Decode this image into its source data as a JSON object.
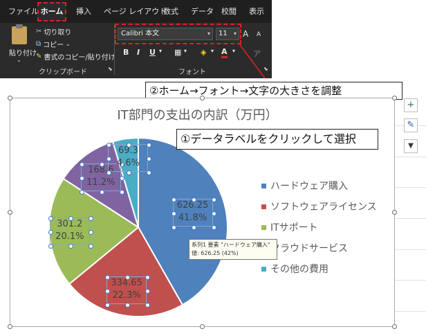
{
  "ribbon": {
    "tabs": [
      "ファイル",
      "ホーム",
      "挿入",
      "ページ レイアウト",
      "数式",
      "データ",
      "校閲",
      "表示"
    ],
    "clipboard": {
      "paste_label": "貼り付け",
      "cut_label": "切り取り",
      "copy_label": "コピー",
      "format_painter_label": "書式のコピー/貼り付け",
      "group_label": "クリップボード"
    },
    "font": {
      "font_name": "Calibri 本文",
      "font_size": "11",
      "grow_label": "A",
      "shrink_label": "A",
      "bold": "B",
      "italic": "I",
      "underline": "U",
      "font_color_letter": "A",
      "group_label": "フォント"
    }
  },
  "callouts": {
    "step2": "②ホーム→フォント→文字の大きさを調整",
    "step1": "①データラベルをクリックして選択"
  },
  "chart": {
    "title": "IT部門の支出の内訳（万円）",
    "side_buttons": [
      "+",
      "✎",
      "▼"
    ],
    "tooltip_line1": "系列1 要素 \"ハードウェア購入\"",
    "tooltip_line2": "値: 626.25 (42%)",
    "colors": {
      "hardware": "#4f81bd",
      "software": "#c0504d",
      "support": "#9bbb59",
      "cloud": "#8064a2",
      "other": "#4bacc6"
    }
  },
  "chart_data": {
    "type": "pie",
    "title": "IT部門の支出の内訳（万円）",
    "categories": [
      "ハードウェア購入",
      "ソフトウェアライセンス",
      "ITサポート",
      "クラウドサービス",
      "その他の費用"
    ],
    "values": [
      626.25,
      334.65,
      301.2,
      168.6,
      69.3
    ],
    "percent_labels": [
      "41.8%",
      "22.3%",
      "20.1%",
      "11.2%",
      "4.6%"
    ],
    "value_labels": [
      "626.25",
      "334.65",
      "301.2",
      "168.6",
      "69.3"
    ],
    "legend_position": "right"
  }
}
